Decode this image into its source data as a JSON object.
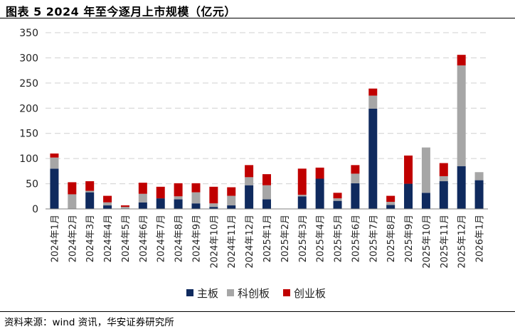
{
  "header": {
    "title": "图表 5 2024 年至今逐月上市规模（亿元）"
  },
  "footer": {
    "source": "资料来源：wind 资讯，华安证券研究所"
  },
  "colors": {
    "主板": "#0f2a5e",
    "科创板": "#a6a6a6",
    "创业板": "#c00000",
    "grid": "#d0d0d0",
    "axis": "#7f7f7f"
  },
  "chart_data": {
    "type": "bar",
    "stacked": true,
    "title": "2024 年至今逐月上市规模（亿元）",
    "xlabel": "",
    "ylabel": "",
    "ylim": [
      0,
      350
    ],
    "yticks": [
      0,
      50,
      100,
      150,
      200,
      250,
      300,
      350
    ],
    "grid": true,
    "legend_position": "bottom",
    "categories": [
      "2024年1月",
      "2024年2月",
      "2024年3月",
      "2024年4月",
      "2024年5月",
      "2024年6月",
      "2024年7月",
      "2024年8月",
      "2024年9月",
      "2024年10月",
      "2024年11月",
      "2024年12月",
      "2025年1月",
      "2025年2月",
      "2025年3月",
      "2025年4月",
      "2025年5月",
      "2025年6月",
      "2025年7月",
      "2025年8月",
      "2025年9月",
      "2025年10月",
      "2025年11月",
      "2025年12月",
      "2026年1月"
    ],
    "series": [
      {
        "name": "主板",
        "values": [
          80,
          0,
          33,
          7,
          0,
          13,
          21,
          19,
          11,
          4,
          7,
          47,
          19,
          0,
          25,
          60,
          16,
          51,
          199,
          8,
          50,
          32,
          55,
          85,
          57
        ]
      },
      {
        "name": "科创板",
        "values": [
          22,
          29,
          3,
          6,
          4,
          17,
          0,
          6,
          22,
          7,
          19,
          16,
          28,
          0,
          3,
          0,
          5,
          19,
          26,
          6,
          0,
          90,
          10,
          200,
          16
        ]
      },
      {
        "name": "创业板",
        "values": [
          8,
          24,
          19,
          13,
          3,
          22,
          23,
          26,
          18,
          33,
          17,
          24,
          22,
          0,
          52,
          22,
          11,
          17,
          14,
          12,
          56,
          0,
          26,
          21,
          0
        ]
      }
    ]
  }
}
